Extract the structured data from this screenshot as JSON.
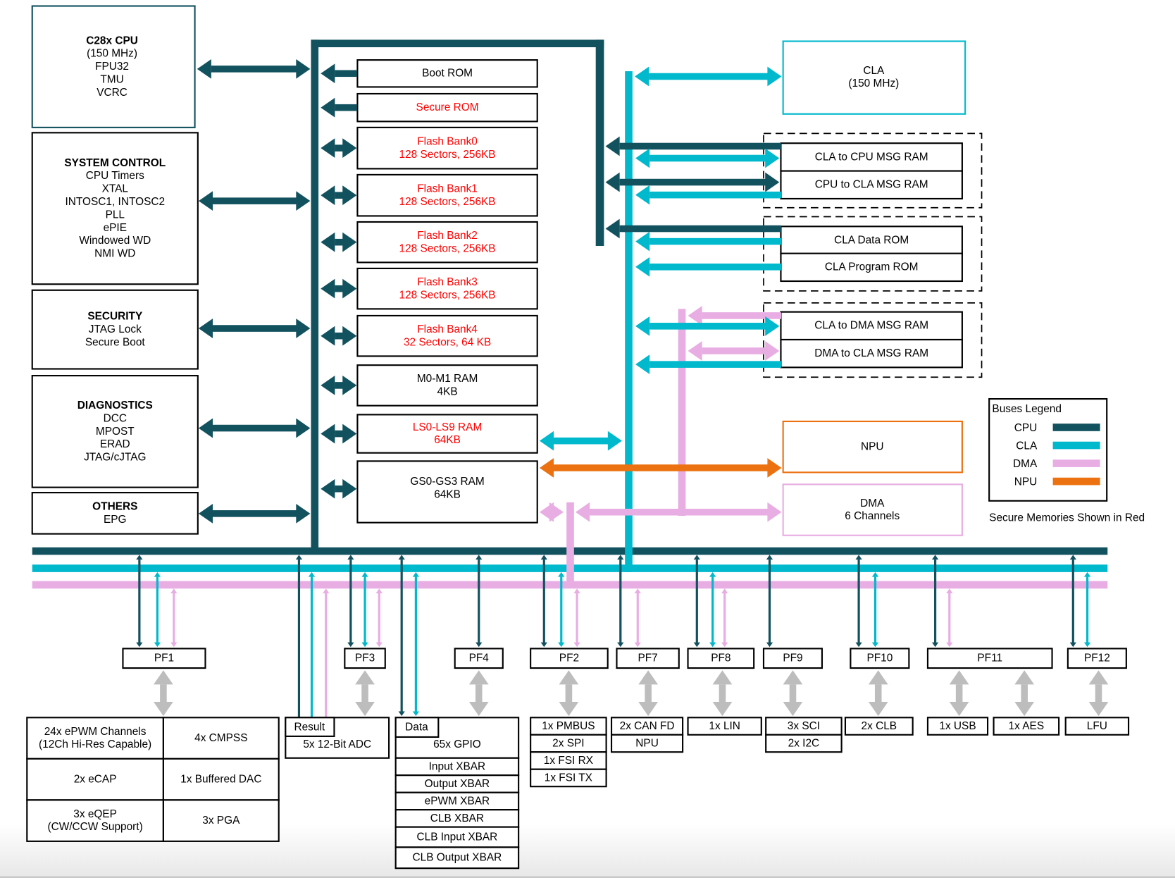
{
  "colors": {
    "cpu": "#12525f",
    "cla": "#00b9cc",
    "dma": "#e8ade3",
    "npu": "#ec7211",
    "secure": "#ff0000",
    "peripheral_link": "#bdbdbd",
    "box": "#000000"
  },
  "left_blocks": [
    {
      "title": "C28x CPU",
      "lines": [
        "(150 MHz)",
        "FPU32",
        "TMU",
        "VCRC"
      ]
    },
    {
      "title": "SYSTEM CONTROL",
      "lines": [
        "CPU Timers",
        "XTAL",
        "INTOSC1, INTOSC2",
        "PLL",
        "ePIE",
        "Windowed WD",
        "NMI WD"
      ]
    },
    {
      "title": "SECURITY",
      "lines": [
        "JTAG Lock",
        "Secure Boot"
      ]
    },
    {
      "title": "DIAGNOSTICS",
      "lines": [
        "DCC",
        "MPOST",
        "ERAD",
        "JTAG/cJTAG"
      ]
    },
    {
      "title": "OTHERS",
      "lines": [
        "EPG"
      ]
    }
  ],
  "memories": [
    {
      "lines": [
        "Boot ROM"
      ],
      "secure": false
    },
    {
      "lines": [
        "Secure ROM"
      ],
      "secure": true
    },
    {
      "lines": [
        "Flash Bank0",
        "128 Sectors, 256KB"
      ],
      "secure": true
    },
    {
      "lines": [
        "Flash Bank1",
        "128 Sectors, 256KB"
      ],
      "secure": true
    },
    {
      "lines": [
        "Flash Bank2",
        "128 Sectors, 256KB"
      ],
      "secure": true
    },
    {
      "lines": [
        "Flash Bank3",
        "128 Sectors, 256KB"
      ],
      "secure": true
    },
    {
      "lines": [
        "Flash Bank4",
        "32 Sectors, 64 KB"
      ],
      "secure": true
    },
    {
      "lines": [
        "M0-M1 RAM",
        "4KB"
      ],
      "secure": false
    },
    {
      "lines": [
        "LS0-LS9 RAM",
        "64KB"
      ],
      "secure": true
    },
    {
      "lines": [
        "GS0-GS3 RAM",
        "64KB"
      ],
      "secure": false
    }
  ],
  "cla": {
    "lines": [
      "CLA",
      "(150 MHz)"
    ]
  },
  "msg_rams": [
    "CLA to CPU MSG RAM",
    "CPU to CLA MSG RAM",
    "CLA Data ROM",
    "CLA Program ROM",
    "CLA to DMA MSG RAM",
    "DMA to CLA MSG RAM"
  ],
  "npu": {
    "lines": [
      "NPU"
    ]
  },
  "dma": {
    "lines": [
      "DMA",
      "6 Channels"
    ]
  },
  "legend": {
    "title": "Buses Legend",
    "items": [
      {
        "label": "CPU",
        "color_key": "cpu"
      },
      {
        "label": "CLA",
        "color_key": "cla"
      },
      {
        "label": "DMA",
        "color_key": "dma"
      },
      {
        "label": "NPU",
        "color_key": "npu"
      }
    ]
  },
  "secure_note": "Secure Memories Shown in Red",
  "peripheral_frames": [
    "PF1",
    "PF3",
    "PF4",
    "PF2",
    "PF7",
    "PF8",
    "PF9",
    "PF10",
    "PF11",
    "PF12"
  ],
  "pf1_modules": [
    "24x ePWM Channels|(12Ch Hi-Res Capable)",
    "4x CMPSS",
    "2x eCAP",
    "1x Buffered DAC",
    "3x eQEP|(CW/CCW Support)",
    "3x PGA"
  ],
  "adc": {
    "tab": "Result",
    "label": "5x 12-Bit ADC"
  },
  "gpio": {
    "tab": "Data",
    "label": "65x GPIO",
    "xbars": [
      "Input XBAR",
      "Output XBAR",
      "ePWM XBAR",
      "CLB XBAR",
      "CLB Input XBAR",
      "CLB Output XBAR"
    ]
  },
  "pf2_modules": [
    "1x PMBUS",
    "2x SPI",
    "1x FSI RX",
    "1x FSI TX"
  ],
  "pf7_modules": [
    "2x CAN FD",
    "NPU"
  ],
  "pf8_modules": [
    "1x LIN"
  ],
  "pf9_modules": [
    "3x SCI",
    "2x I2C"
  ],
  "pf10_modules": [
    "2x CLB"
  ],
  "pf11_modules": [
    "1x USB",
    "1x AES"
  ],
  "pf12_modules": [
    "LFU"
  ]
}
